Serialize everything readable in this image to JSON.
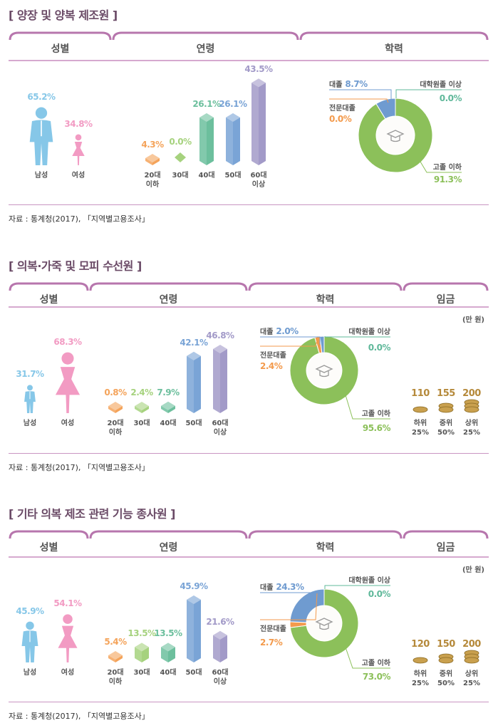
{
  "source_label": "자료 : 통계청(2017), 「지역별고용조사」",
  "wage_unit": "(만 원)",
  "colors": {
    "male": "#86c7e8",
    "female": "#f29bc3",
    "ages": [
      "#f4a35a",
      "#a6d27e",
      "#6cbf9d",
      "#7aa4d6",
      "#a29ac8"
    ],
    "high": "#8cc05a",
    "college2": "#f39a4c",
    "college4": "#6f9bd0",
    "grad": "#5fb89a",
    "wage": "#c9a04e",
    "purple": "#b776ad"
  },
  "chart_data": [
    {
      "type": "infographic",
      "title": "[ 양장 및 양복 제조원 ]",
      "columns": [
        "성별",
        "연령",
        "학력"
      ],
      "gender": [
        {
          "label": "남성",
          "value": "65.2%",
          "pct": 65.2
        },
        {
          "label": "여성",
          "value": "34.8%",
          "pct": 34.8
        }
      ],
      "age": [
        {
          "label": "20대 이하",
          "value": "4.3%",
          "pct": 4.3
        },
        {
          "label": "30대",
          "value": "0.0%",
          "pct": 0
        },
        {
          "label": "40대",
          "value": "26.1%",
          "pct": 26.1
        },
        {
          "label": "50대",
          "value": "26.1%",
          "pct": 26.1
        },
        {
          "label": "60대 이상",
          "value": "43.5%",
          "pct": 43.5
        }
      ],
      "education": [
        {
          "label": "고졸 이하",
          "value": "91.3%",
          "pct": 91.3
        },
        {
          "label": "전문대졸",
          "value": "0.0%",
          "pct": 0
        },
        {
          "label": "대졸",
          "value": "8.7%",
          "pct": 8.7
        },
        {
          "label": "대학원졸 이상",
          "value": "0.0%",
          "pct": 0
        }
      ]
    },
    {
      "type": "infographic",
      "title": "[ 의복·가죽 및 모피 수선원 ]",
      "columns": [
        "성별",
        "연령",
        "학력",
        "임금"
      ],
      "gender": [
        {
          "label": "남성",
          "value": "31.7%",
          "pct": 31.7
        },
        {
          "label": "여성",
          "value": "68.3%",
          "pct": 68.3
        }
      ],
      "age": [
        {
          "label": "20대 이하",
          "value": "0.8%",
          "pct": 0.8
        },
        {
          "label": "30대",
          "value": "2.4%",
          "pct": 2.4
        },
        {
          "label": "40대",
          "value": "7.9%",
          "pct": 7.9
        },
        {
          "label": "50대",
          "value": "42.1%",
          "pct": 42.1
        },
        {
          "label": "60대 이상",
          "value": "46.8%",
          "pct": 46.8
        }
      ],
      "education": [
        {
          "label": "고졸 이하",
          "value": "95.6%",
          "pct": 95.6
        },
        {
          "label": "전문대졸",
          "value": "2.4%",
          "pct": 2.4
        },
        {
          "label": "대졸",
          "value": "2.0%",
          "pct": 2.0
        },
        {
          "label": "대학원졸 이상",
          "value": "0.0%",
          "pct": 0
        }
      ],
      "wage": [
        {
          "label": "하위 25%",
          "value": "110"
        },
        {
          "label": "중위 50%",
          "value": "155"
        },
        {
          "label": "상위 25%",
          "value": "200"
        }
      ]
    },
    {
      "type": "infographic",
      "title": "[ 기타 의복 제조 관련 기능 종사원 ]",
      "columns": [
        "성별",
        "연령",
        "학력",
        "임금"
      ],
      "gender": [
        {
          "label": "남성",
          "value": "45.9%",
          "pct": 45.9
        },
        {
          "label": "여성",
          "value": "54.1%",
          "pct": 54.1
        }
      ],
      "age": [
        {
          "label": "20대 이하",
          "value": "5.4%",
          "pct": 5.4
        },
        {
          "label": "30대",
          "value": "13.5%",
          "pct": 13.5
        },
        {
          "label": "40대",
          "value": "13.5%",
          "pct": 13.5
        },
        {
          "label": "50대",
          "value": "45.9%",
          "pct": 45.9
        },
        {
          "label": "60대 이상",
          "value": "21.6%",
          "pct": 21.6
        }
      ],
      "education": [
        {
          "label": "고졸 이하",
          "value": "73.0%",
          "pct": 73.0
        },
        {
          "label": "전문대졸",
          "value": "2.7%",
          "pct": 2.7
        },
        {
          "label": "대졸",
          "value": "24.3%",
          "pct": 24.3
        },
        {
          "label": "대학원졸 이상",
          "value": "0.0%",
          "pct": 0
        }
      ],
      "wage": [
        {
          "label": "하위 25%",
          "value": "120"
        },
        {
          "label": "중위 50%",
          "value": "150"
        },
        {
          "label": "상위 25%",
          "value": "200"
        }
      ]
    }
  ]
}
